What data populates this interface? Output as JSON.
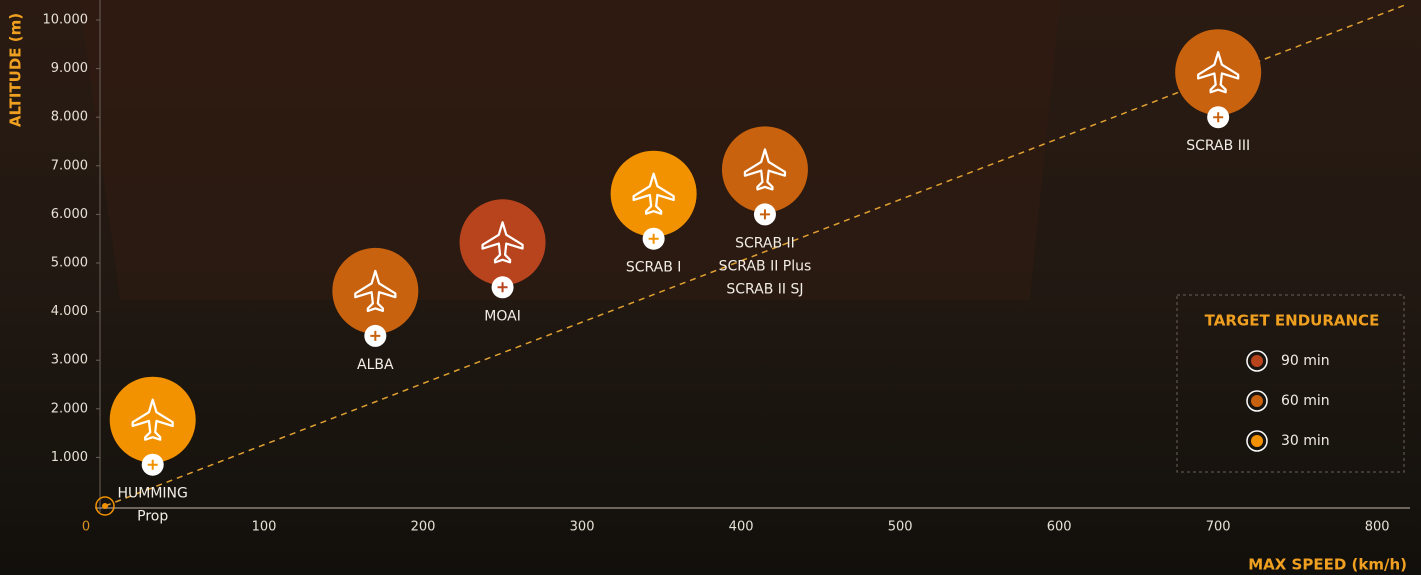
{
  "chart_data": {
    "type": "scatter",
    "xlabel": "MAX SPEED (km/h)",
    "ylabel": "ALTITUDE (m)",
    "xlim": [
      0,
      820
    ],
    "ylim": [
      0,
      10000
    ],
    "xticks": [
      0,
      100,
      200,
      300,
      400,
      500,
      600,
      700,
      800
    ],
    "yticks": [
      {
        "value": 1000,
        "label": "1.000"
      },
      {
        "value": 2000,
        "label": "2.000"
      },
      {
        "value": 3000,
        "label": "3.000"
      },
      {
        "value": 4000,
        "label": "4.000"
      },
      {
        "value": 5000,
        "label": "5.000"
      },
      {
        "value": 6000,
        "label": "6.000"
      },
      {
        "value": 7000,
        "label": "7.000"
      },
      {
        "value": 8000,
        "label": "8.000"
      },
      {
        "value": 9000,
        "label": "9.000"
      },
      {
        "value": 10000,
        "label": "10.000"
      }
    ],
    "legend_title": "TARGET ENDURANCE",
    "series": [
      {
        "name": "90 min",
        "color": "#b8441e",
        "x": [
          250
        ],
        "y": [
          4500
        ],
        "labels": [
          [
            "MOAI"
          ]
        ]
      },
      {
        "name": "60 min",
        "color": "#c8620e",
        "x": [
          170,
          415,
          700
        ],
        "y": [
          3500,
          6000,
          8000
        ],
        "labels": [
          [
            "ALBA"
          ],
          [
            "SCRAB II",
            "SCRAB II Plus",
            "SCRAB II SJ"
          ],
          [
            "SCRAB III"
          ]
        ]
      },
      {
        "name": "30 min",
        "color": "#f39200",
        "x": [
          30,
          345
        ],
        "y": [
          850,
          5500
        ],
        "labels": [
          [
            "HUMMING",
            "Prop"
          ],
          [
            "SCRAB I"
          ]
        ]
      }
    ]
  }
}
